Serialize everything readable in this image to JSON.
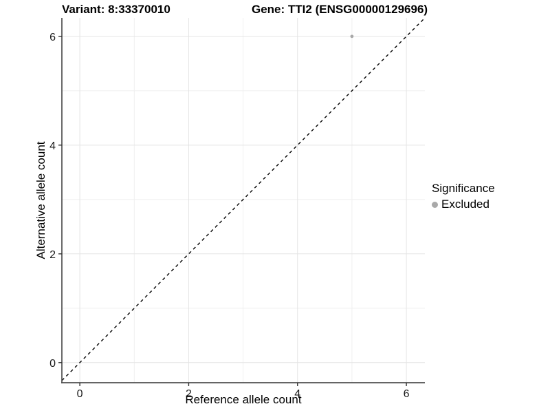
{
  "titles": {
    "variant": "Variant: 8:33370010",
    "gene": "Gene: TTI2 (ENSG00000129696)"
  },
  "legend": {
    "title": "Significance",
    "items": [
      {
        "label": "Excluded",
        "color": "#a9a9a9"
      }
    ]
  },
  "chart_data": {
    "type": "scatter",
    "title": "Variant: 8:33370010 | Gene: TTI2 (ENSG00000129696)",
    "xlabel": "Reference allele count",
    "ylabel": "Alternative allele count",
    "xlim": [
      -0.33,
      6.34
    ],
    "ylim": [
      -0.37,
      6.34
    ],
    "x_ticks": [
      0,
      2,
      4,
      6
    ],
    "y_ticks": [
      0,
      2,
      4,
      6
    ],
    "x_minor_ticks": [
      1,
      3,
      5
    ],
    "y_minor_ticks": [
      1,
      3,
      5
    ],
    "grid": "on",
    "legend_position": "right",
    "series": [
      {
        "name": "Excluded",
        "color": "#a9a9a9",
        "points": [
          [
            5,
            6
          ]
        ],
        "point_radius": 2.4
      }
    ],
    "reference_line": {
      "kind": "identity y=x",
      "style": "dashed",
      "color": "#000000"
    }
  },
  "colors": {
    "grid_major": "#e4e4e4",
    "grid_minor": "#efefef",
    "axis_line": "#4f4f4f",
    "tick_mark": "#333333",
    "tick_text": "#1a1a1a",
    "reference_line": "#000000"
  }
}
